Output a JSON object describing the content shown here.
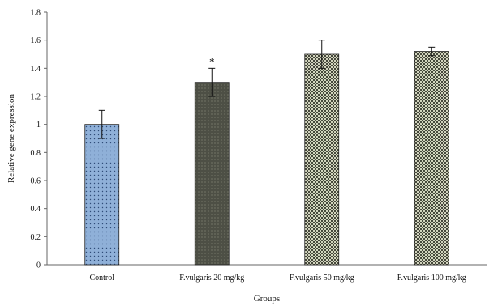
{
  "chart_data": {
    "type": "bar",
    "title": "",
    "xlabel": "Groups",
    "ylabel": "Relative gene expression",
    "ylim": [
      0,
      1.8
    ],
    "yticks": [
      "0",
      "0.2",
      "0.4",
      "0.6",
      "0.8",
      "1",
      "1.2",
      "1.4",
      "1.6",
      "1.8"
    ],
    "grid": false,
    "legend": "none",
    "categories": [
      "Control",
      "F.vulgaris 20 mg/kg",
      "F.vulgaris 50 mg/kg",
      "F.vulgaris 100 mg/kg"
    ],
    "values": [
      1.0,
      1.3,
      1.5,
      1.52
    ],
    "errors": [
      0.1,
      0.1,
      0.1,
      0.03
    ],
    "annotations": [
      "",
      "*",
      "",
      ""
    ],
    "colors": [
      "#8fb0d8",
      "#4d4f45",
      "#d2d4be",
      "#d2d4be"
    ],
    "patterns": [
      "fine-dots",
      "dark-dots",
      "checker",
      "checker"
    ]
  }
}
